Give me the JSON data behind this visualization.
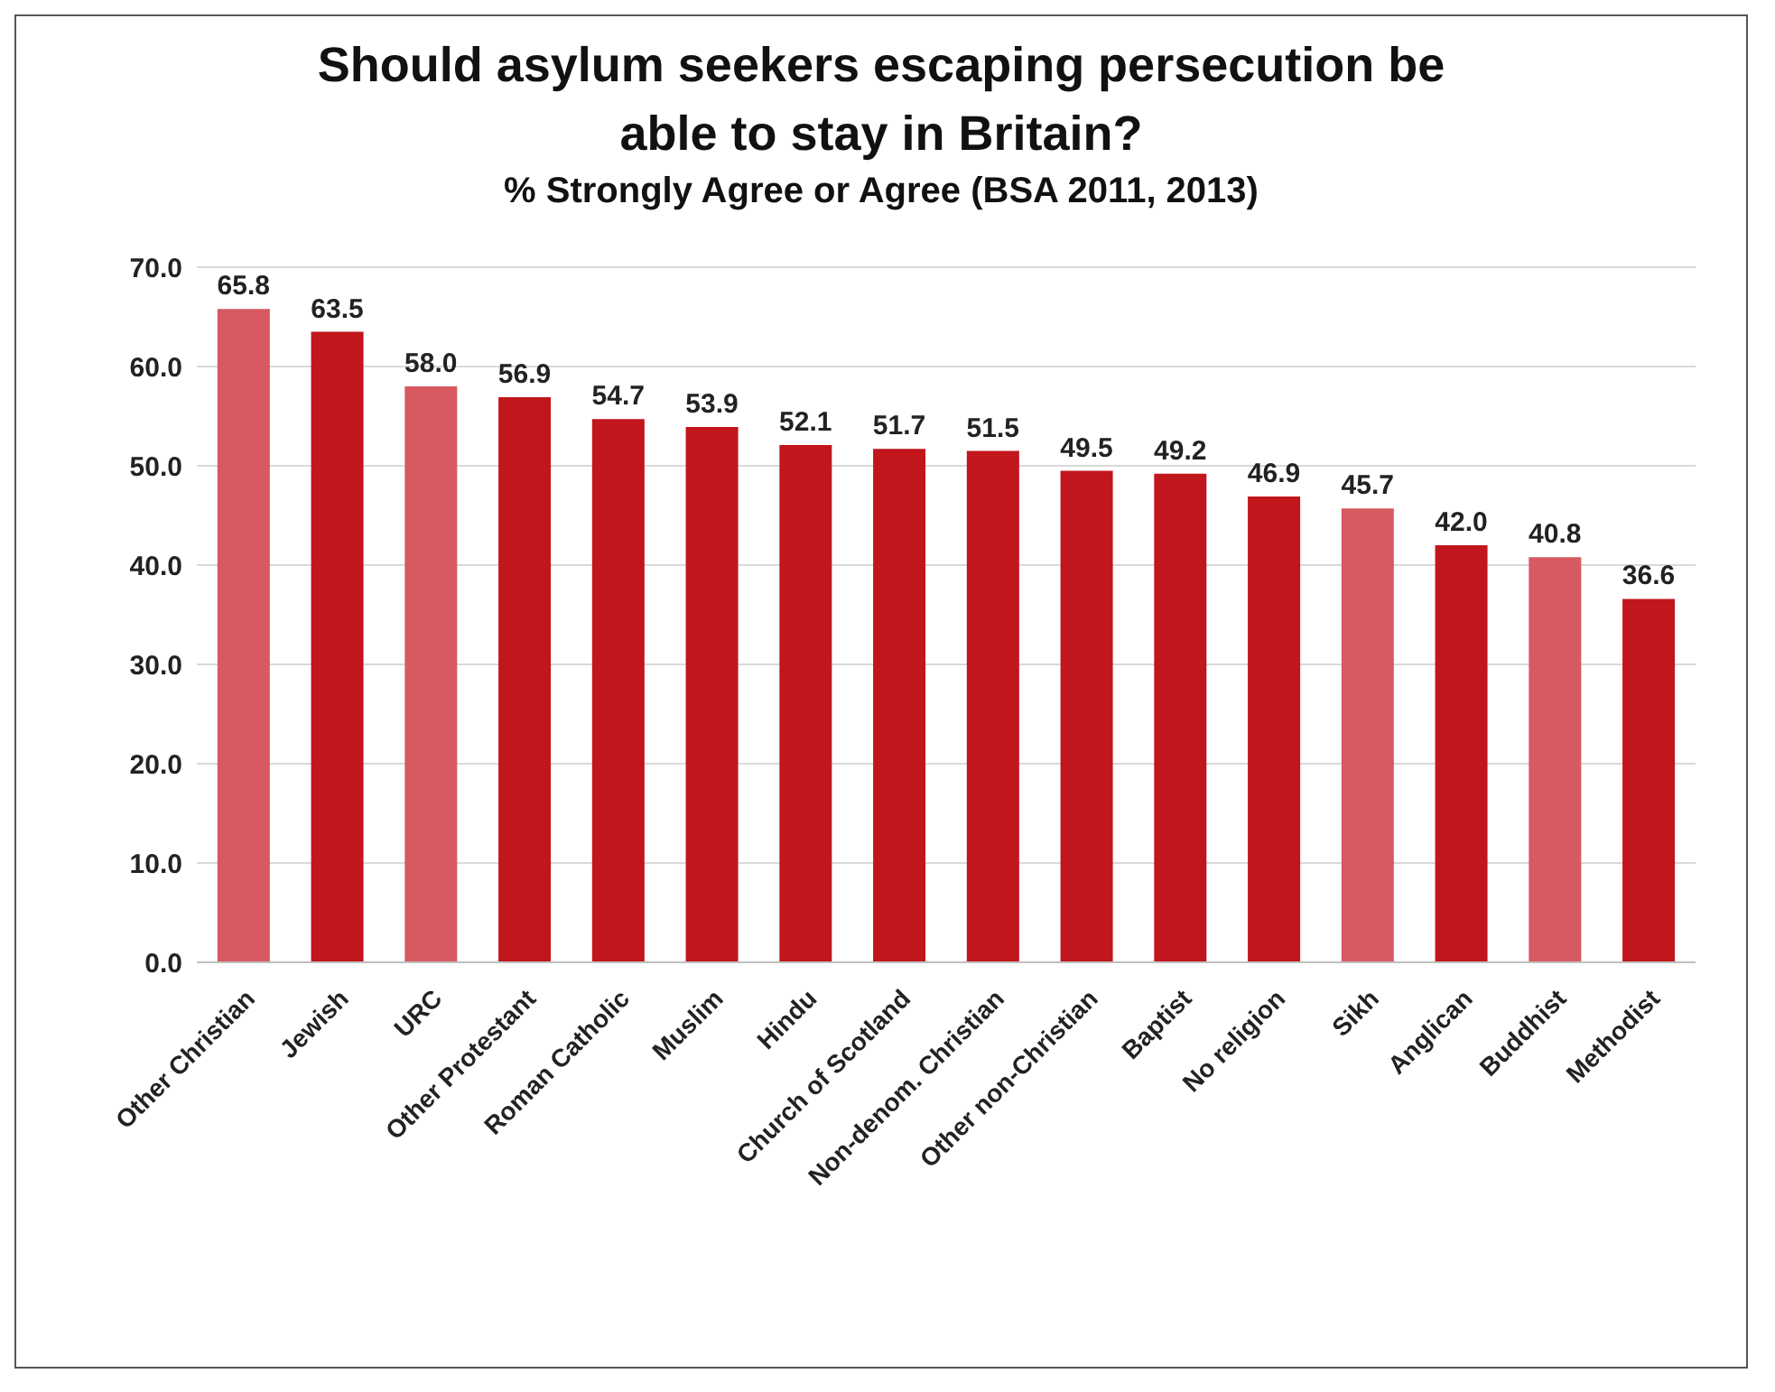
{
  "chart_data": {
    "type": "bar",
    "title": "Should asylum seekers escaping persecution be able to stay in Britain?",
    "subtitle": "% Strongly Agree or Agree (BSA 2011, 2013)",
    "categories": [
      "Other Christian",
      "Jewish",
      "URC",
      "Other Protestant",
      "Roman Catholic",
      "Muslim",
      "Hindu",
      "Church of Scotland",
      "Non-denom. Christian",
      "Other non-Christian",
      "Baptist",
      "No religion",
      "Sikh",
      "Anglican",
      "Buddhist",
      "Methodist"
    ],
    "values": [
      65.8,
      63.5,
      58.0,
      56.9,
      54.7,
      53.9,
      52.1,
      51.7,
      51.5,
      49.5,
      49.2,
      46.9,
      45.7,
      42.0,
      40.8,
      36.6
    ],
    "value_labels": [
      "65.8",
      "63.5",
      "58.0",
      "56.9",
      "54.7",
      "53.9",
      "52.1",
      "51.7",
      "51.5",
      "49.5",
      "49.2",
      "46.9",
      "45.7",
      "42.0",
      "40.8",
      "36.6"
    ],
    "colors": [
      "#d65a60",
      "#c0161c",
      "#d65a60",
      "#c0161c",
      "#c0161c",
      "#c0161c",
      "#c0161c",
      "#c0161c",
      "#c0161c",
      "#c0161c",
      "#c0161c",
      "#c0161c",
      "#d65a60",
      "#c0161c",
      "#d65a60",
      "#c0161c"
    ],
    "ylim": [
      0,
      70
    ],
    "yticks": [
      {
        "value": 0,
        "label": "0.0"
      },
      {
        "value": 10,
        "label": "10.0"
      },
      {
        "value": 20,
        "label": "20.0"
      },
      {
        "value": 30,
        "label": "30.0"
      },
      {
        "value": 40,
        "label": "40.0"
      },
      {
        "value": 50,
        "label": "50.0"
      },
      {
        "value": 60,
        "label": "60.0"
      },
      {
        "value": 70,
        "label": "70.0"
      }
    ],
    "grid": "y"
  }
}
